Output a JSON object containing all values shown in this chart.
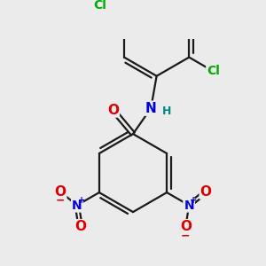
{
  "background_color": "#ebebeb",
  "bond_color": "#1a1a1a",
  "atom_colors": {
    "C": "#1a1a1a",
    "N": "#0000dd",
    "O": "#dd0000",
    "Cl": "#00aa00",
    "H": "#008888"
  },
  "font_size": 10,
  "bond_width": 1.6,
  "dbo": 0.065
}
